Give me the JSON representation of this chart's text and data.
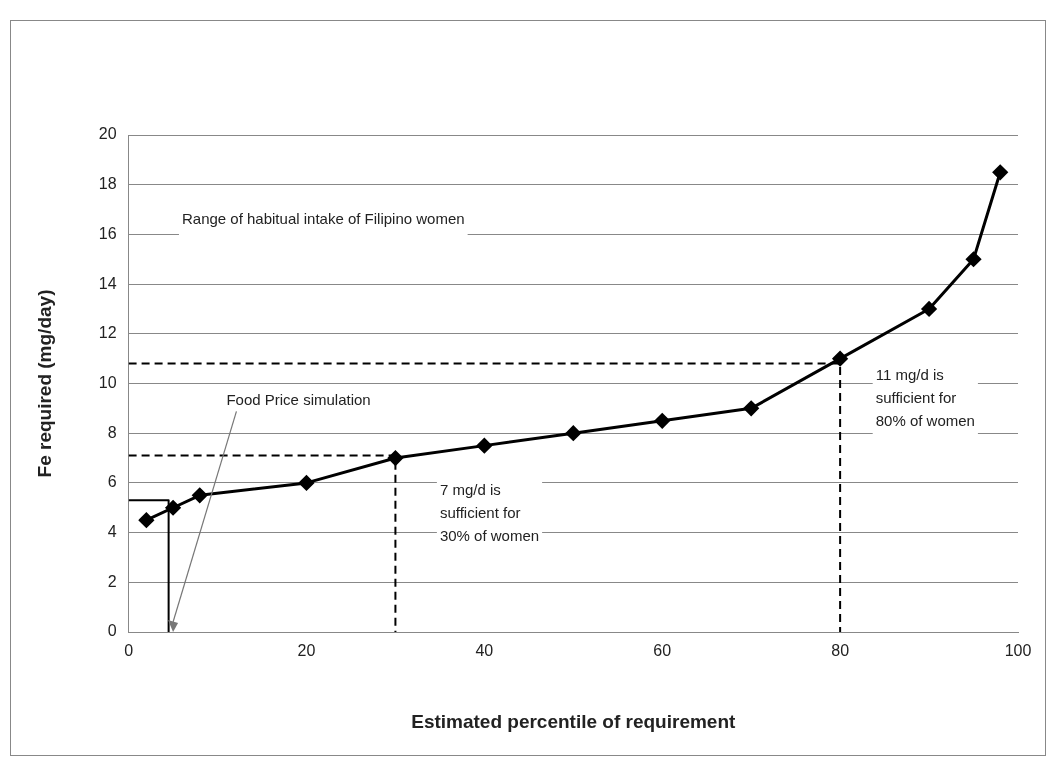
{
  "chart_data": {
    "type": "line",
    "xlabel": "Estimated percentile of requirement",
    "ylabel": "Fe required (mg/day)",
    "xlim": [
      0,
      100
    ],
    "xticks": [
      0,
      20,
      40,
      60,
      80,
      100
    ],
    "ylim": [
      0,
      20
    ],
    "yticks": [
      0,
      2,
      4,
      6,
      8,
      10,
      12,
      14,
      16,
      18,
      20
    ],
    "grid": "y",
    "legend": false,
    "series": [
      {
        "color": "#000000",
        "marker": "diamond",
        "line_style": "solid",
        "x": [
          2,
          5,
          8,
          20,
          30,
          40,
          50,
          60,
          70,
          80,
          90,
          95,
          98
        ],
        "values": [
          4.5,
          5,
          5.5,
          6,
          7,
          7.5,
          8,
          8.5,
          9,
          11,
          13,
          15,
          18.5
        ]
      },
      {
        "color": "#000000",
        "marker": "none",
        "line_style": "dashed",
        "x": [
          0,
          30,
          30
        ],
        "values": [
          7.1,
          7.1,
          0
        ]
      },
      {
        "color": "#000000",
        "marker": "none",
        "line_style": "dashed",
        "x": [
          0,
          80,
          80
        ],
        "values": [
          10.8,
          10.8,
          0
        ]
      },
      {
        "color": "#000000",
        "marker": "none",
        "line_style": "solid",
        "x": [
          0,
          4.5,
          4.5
        ],
        "values": [
          5.3,
          5.3,
          0
        ]
      }
    ],
    "annotations": [
      "Range of habitual intake of Filipino women",
      "7 mg/d is\nsufficient for\n30% of women",
      "11 mg/d is\nsufficient for\n80% of women",
      "Food Price simulation"
    ]
  }
}
